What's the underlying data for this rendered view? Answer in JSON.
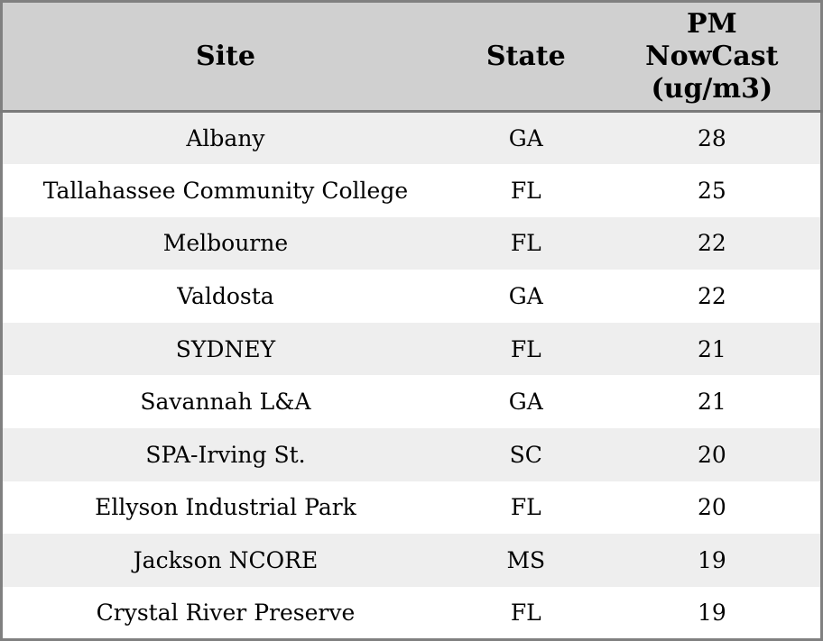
{
  "table": {
    "columns": [
      {
        "key": "site",
        "label": "Site"
      },
      {
        "key": "state",
        "label": "State"
      },
      {
        "key": "value",
        "label": "PM NowCast (ug/m3)"
      }
    ],
    "rows": [
      {
        "site": "Albany",
        "state": "GA",
        "value": "28"
      },
      {
        "site": "Tallahassee Community College",
        "state": "FL",
        "value": "25"
      },
      {
        "site": "Melbourne",
        "state": "FL",
        "value": "22"
      },
      {
        "site": "Valdosta",
        "state": "GA",
        "value": "22"
      },
      {
        "site": "SYDNEY",
        "state": "FL",
        "value": "21"
      },
      {
        "site": "Savannah L&A",
        "state": "GA",
        "value": "21"
      },
      {
        "site": "SPA-Irving St.",
        "state": "SC",
        "value": "20"
      },
      {
        "site": "Ellyson Industrial Park",
        "state": "FL",
        "value": "20"
      },
      {
        "site": "Jackson NCORE",
        "state": "MS",
        "value": "19"
      },
      {
        "site": "Crystal River Preserve",
        "state": "FL",
        "value": "19"
      }
    ],
    "colors": {
      "header_bg": "#d0d0d0",
      "stripe_bg": "#eeeeee",
      "row_bg": "#ffffff",
      "border": "#808080",
      "text": "#000000"
    }
  }
}
